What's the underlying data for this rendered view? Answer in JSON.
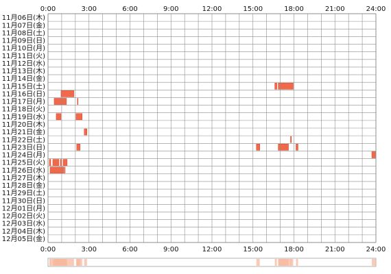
{
  "chart_data": {
    "type": "heatmap",
    "title": "",
    "xlabel": "",
    "ylabel": "",
    "x_ticks": [
      "0:00",
      "3:00",
      "6:00",
      "9:00",
      "12:00",
      "15:00",
      "18:00",
      "21:00",
      "24:00"
    ],
    "x_range_hours": [
      0,
      24
    ],
    "grid": true,
    "bar_color": "#f0694a",
    "bar_edge_color": "#d64a2a",
    "grid_color": "#8c8c8c",
    "summary_strip_color": "#f7b89e",
    "rows": [
      "11月06日(木)",
      "11月07日(金)",
      "11月08日(土)",
      "11月09日(日)",
      "11月10日(月)",
      "11月11日(火)",
      "11月12日(水)",
      "11月13日(木)",
      "11月14日(金)",
      "11月15日(土)",
      "11月16日(日)",
      "11月17日(月)",
      "11月18日(火)",
      "11月19日(水)",
      "11月20日(木)",
      "11月21日(金)",
      "11月22日(土)",
      "11月23日(日)",
      "11月24日(月)",
      "11月25日(火)",
      "11月26日(水)",
      "11月27日(木)",
      "11月28日(金)",
      "11月29日(土)",
      "11月30日(日)",
      "12月01日(月)",
      "12月02日(火)",
      "12月03日(水)",
      "12月04日(木)",
      "12月05日(金)"
    ],
    "activity": [
      {
        "row": 9,
        "start": 16.6,
        "end": 16.75
      },
      {
        "row": 9,
        "start": 16.85,
        "end": 17.95
      },
      {
        "row": 10,
        "start": 0.95,
        "end": 1.9
      },
      {
        "row": 11,
        "start": 0.45,
        "end": 1.35
      },
      {
        "row": 11,
        "start": 2.15,
        "end": 2.2
      },
      {
        "row": 13,
        "start": 0.6,
        "end": 0.95
      },
      {
        "row": 13,
        "start": 2.05,
        "end": 2.5
      },
      {
        "row": 15,
        "start": 2.65,
        "end": 2.85
      },
      {
        "row": 16,
        "start": 17.75,
        "end": 17.82
      },
      {
        "row": 17,
        "start": 2.1,
        "end": 2.35
      },
      {
        "row": 17,
        "start": 15.25,
        "end": 15.5
      },
      {
        "row": 17,
        "start": 16.85,
        "end": 17.6
      },
      {
        "row": 17,
        "start": 18.15,
        "end": 18.3
      },
      {
        "row": 18,
        "start": 23.7,
        "end": 24.0
      },
      {
        "row": 19,
        "start": 0.1,
        "end": 0.2
      },
      {
        "row": 19,
        "start": 0.35,
        "end": 0.8
      },
      {
        "row": 19,
        "start": 0.9,
        "end": 0.98
      },
      {
        "row": 19,
        "start": 1.1,
        "end": 1.4
      },
      {
        "row": 20,
        "start": 0.15,
        "end": 1.15
      },
      {
        "row": 20,
        "start": 1.2,
        "end": 1.25
      }
    ]
  }
}
